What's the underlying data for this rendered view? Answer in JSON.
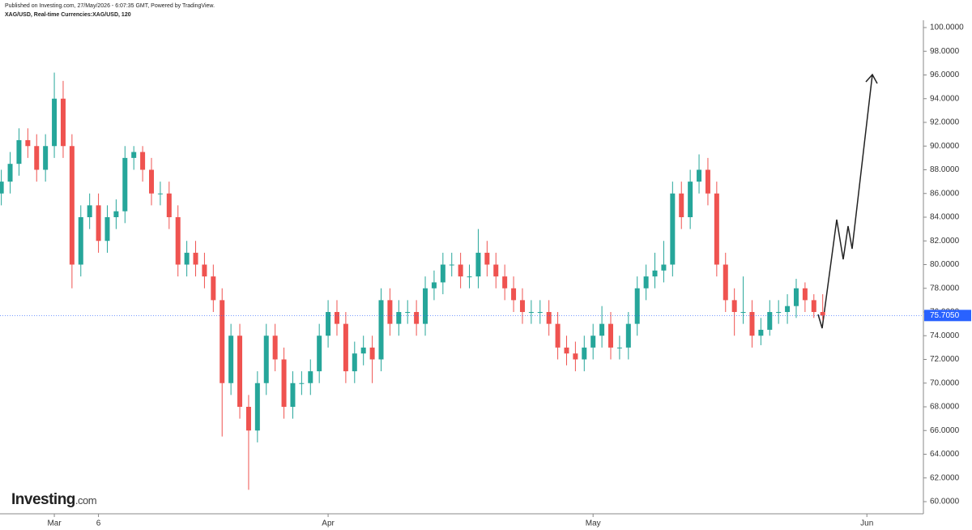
{
  "header": {
    "published": "Published on Investing.com, 27/May/2026 - 6:07:35 GMT, Powered by TradingView.",
    "symbol": "XAG/USD, Real-time Currencies:XAG/USD, 120"
  },
  "logo": {
    "name": "Investing",
    "suffix": ".com"
  },
  "chart_data": {
    "type": "candlestick",
    "up_color": "#26a69a",
    "down_color": "#ef5350",
    "x": [
      -6,
      -5,
      -4,
      -3,
      -2,
      -1,
      0,
      1,
      2,
      3,
      4,
      5,
      6,
      7,
      8,
      9,
      10,
      11,
      12,
      13,
      14,
      15,
      16,
      17,
      18,
      19,
      20,
      21,
      22,
      23,
      24,
      25,
      26,
      27,
      28,
      29,
      30,
      31,
      32,
      33,
      34,
      35,
      36,
      37,
      38,
      39,
      40,
      41,
      42,
      43,
      44,
      45,
      46,
      47,
      48,
      49,
      50,
      51,
      52,
      53,
      54,
      55,
      56,
      57,
      58,
      59,
      60,
      61,
      62,
      63,
      64,
      65,
      66,
      67,
      68,
      69,
      70,
      71,
      72,
      73,
      74,
      75,
      76,
      77,
      78,
      79,
      80,
      81,
      82,
      83,
      84,
      85,
      86,
      87
    ],
    "open": [
      86,
      87,
      88.5,
      90.5,
      90,
      88,
      90,
      94,
      90,
      80,
      84,
      85,
      82,
      84,
      84.5,
      89,
      89.5,
      88,
      86,
      86,
      84,
      80,
      81,
      80,
      79,
      77,
      70,
      74,
      68,
      66,
      70,
      74,
      72,
      68,
      70,
      70,
      71,
      74,
      76,
      75,
      71,
      72.5,
      73,
      72,
      77,
      75,
      76,
      76,
      75,
      78,
      78.5,
      80,
      80,
      79,
      79,
      81,
      80,
      79,
      78,
      77,
      76,
      76,
      76,
      75,
      73,
      72.5,
      72,
      73,
      74,
      75,
      73,
      73,
      75,
      78,
      79,
      79.5,
      80,
      86,
      84,
      87,
      88,
      86,
      80,
      77,
      76,
      76,
      74,
      74.5,
      76,
      76,
      76.5,
      78,
      77,
      76
    ],
    "high": [
      88,
      89.5,
      91.5,
      91.5,
      91,
      91,
      96.2,
      95.5,
      91,
      85,
      86,
      86,
      85,
      85.5,
      90,
      90,
      90,
      89,
      87,
      87,
      85,
      82,
      82,
      81,
      80,
      78,
      75,
      75,
      69,
      71,
      75,
      75,
      73,
      71,
      71,
      72,
      75,
      77,
      77,
      76,
      73.5,
      74,
      74,
      78,
      78,
      77,
      77,
      77,
      79,
      79.5,
      81,
      81,
      81,
      80,
      83,
      82,
      81,
      80,
      79,
      78,
      77,
      77,
      77,
      76,
      74,
      73.5,
      74,
      75,
      76.5,
      76,
      74,
      76,
      79,
      80,
      81,
      82,
      87,
      87,
      88,
      89.3,
      89,
      87,
      81,
      78,
      79,
      77,
      75.5,
      77,
      77,
      77.5,
      78.8,
      78.5,
      77.5,
      77.5
    ],
    "low": [
      85,
      86,
      87.5,
      89,
      87,
      87,
      89,
      89,
      78,
      79,
      83,
      81,
      81,
      83,
      83.5,
      88,
      87,
      85,
      85,
      83,
      79,
      79,
      79,
      78,
      76,
      65.5,
      69,
      67,
      61,
      65,
      69,
      71,
      67,
      67,
      69,
      69,
      70,
      73,
      74,
      70,
      70,
      71.5,
      70,
      71,
      74,
      74,
      75,
      74,
      74,
      77,
      77.5,
      79,
      78,
      78,
      78,
      79,
      78,
      77,
      76,
      75,
      75,
      75,
      74,
      72,
      71.5,
      71,
      71,
      72,
      73,
      72,
      72,
      72,
      74,
      77,
      78,
      78.5,
      79,
      83,
      83,
      86,
      85,
      79,
      76,
      74,
      75,
      73,
      73.2,
      74,
      75,
      75,
      75.5,
      76,
      75.5,
      75.3
    ],
    "close": [
      87,
      88.5,
      90.5,
      90,
      88,
      90,
      94,
      90,
      80,
      84,
      85,
      82,
      84,
      84.5,
      89,
      89.5,
      88,
      86,
      86,
      84,
      80,
      81,
      80,
      79,
      77,
      70,
      74,
      68,
      66,
      70,
      74,
      72,
      68,
      70,
      70,
      71,
      74,
      76,
      75,
      71,
      72.5,
      73,
      72,
      77,
      75,
      76,
      76,
      75,
      78,
      78.5,
      80,
      80,
      79,
      79,
      81,
      80,
      79,
      78,
      77,
      76,
      76,
      76,
      75,
      73,
      72.5,
      72,
      73,
      74,
      75,
      73,
      73,
      75,
      78,
      79,
      79.5,
      80,
      86,
      84,
      87,
      88,
      86,
      80,
      77,
      76,
      76,
      74,
      74.5,
      76,
      76,
      76.5,
      78,
      77,
      76,
      75.7
    ],
    "xlim": [
      -6.15,
      98.4
    ],
    "xticks": [
      {
        "value": 0,
        "label": "Mar"
      },
      {
        "value": 5,
        "label": "6"
      },
      {
        "value": 31,
        "label": "Apr"
      },
      {
        "value": 61,
        "label": "May"
      },
      {
        "value": 92,
        "label": "Jun"
      }
    ],
    "ylim": [
      60,
      100
    ],
    "yticks": [
      {
        "value": 60,
        "label": "60.0000"
      },
      {
        "value": 62,
        "label": "62.0000"
      },
      {
        "value": 64,
        "label": "64.0000"
      },
      {
        "value": 66,
        "label": "66.0000"
      },
      {
        "value": 68,
        "label": "68.0000"
      },
      {
        "value": 70,
        "label": "70.0000"
      },
      {
        "value": 72,
        "label": "72.0000"
      },
      {
        "value": 74,
        "label": "74.0000"
      },
      {
        "value": 76,
        "label": "76.0000"
      },
      {
        "value": 78,
        "label": "78.0000"
      },
      {
        "value": 80,
        "label": "80.0000"
      },
      {
        "value": 82,
        "label": "82.0000"
      },
      {
        "value": 84,
        "label": "84.0000"
      },
      {
        "value": 86,
        "label": "86.0000"
      },
      {
        "value": 88,
        "label": "88.0000"
      },
      {
        "value": 90,
        "label": "90.0000"
      },
      {
        "value": 92,
        "label": "92.0000"
      },
      {
        "value": 94,
        "label": "94.0000"
      },
      {
        "value": 96,
        "label": "96.0000"
      },
      {
        "value": 98,
        "label": "98.0000"
      },
      {
        "value": 100,
        "label": "100.0000"
      }
    ],
    "last_price": {
      "value": 75.705,
      "label": "75.7050",
      "color": "#2962ff"
    }
  }
}
